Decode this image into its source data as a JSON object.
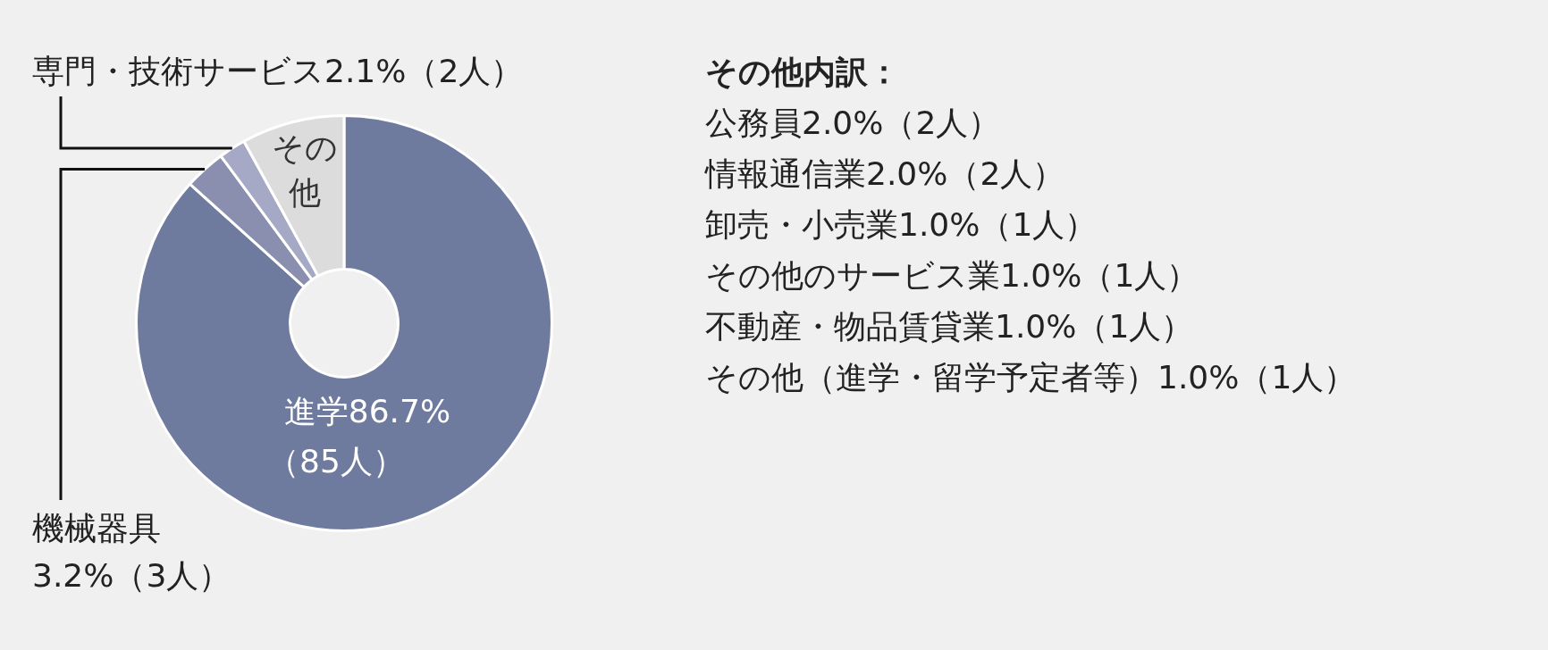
{
  "chart_data": {
    "type": "donut",
    "categories": [
      "進学",
      "機械器具",
      "専門・技術サービス",
      "その他"
    ],
    "values": [
      86.7,
      3.2,
      2.1,
      8.0
    ],
    "value_labels": [
      "86.7%（85人）",
      "3.2%（3人）",
      "2.1%（2人）",
      null
    ],
    "colors": [
      "#6e7a9e",
      "#8a8fb0",
      "#a6a9c5",
      "#dcdcdc"
    ],
    "legend": false,
    "annotations": [
      "その他内訳：",
      "公務員2.0%（2人）",
      "情報通信業2.0%（2人）",
      "卸売・小売業1.0%（1人）",
      "その他のサービス業1.0%（1人）",
      "不動産・物品賃貸業1.0%（1人）",
      "その他（進学・留学予定者等）1.0%（1人）"
    ]
  }
}
